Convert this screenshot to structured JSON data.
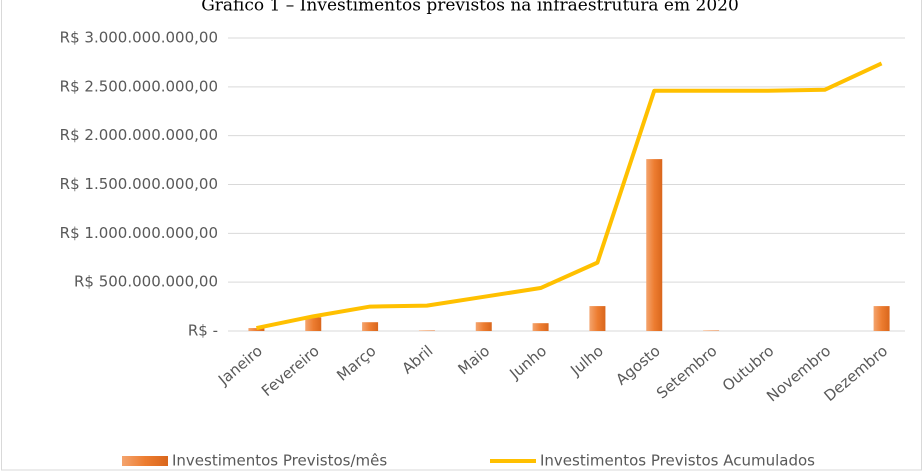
{
  "chart_data": {
    "type": "combo",
    "title": "Gráfico 1 – Investimentos previstos na infraestrutura em 2020",
    "categories": [
      "Janeiro",
      "Fevereiro",
      "Março",
      "Abril",
      "Maio",
      "Junho",
      "Julho",
      "Agosto",
      "Setembro",
      "Outubro",
      "Novembro",
      "Dezembro"
    ],
    "series": [
      {
        "name": "Investimentos Previstos/mês",
        "type": "bar",
        "color": "#ED7D31",
        "values": [
          30000000,
          140000000,
          90000000,
          5000000,
          90000000,
          80000000,
          255000000,
          1760000000,
          5000000,
          0,
          0,
          255000000
        ]
      },
      {
        "name": "Investimentos Previstos Acumulados",
        "type": "line",
        "color": "#FFC000",
        "values": [
          30000000,
          150000000,
          250000000,
          260000000,
          350000000,
          440000000,
          700000000,
          2460000000,
          2460000000,
          2460000000,
          2470000000,
          2740000000
        ]
      }
    ],
    "ylim": [
      0,
      3000000000
    ],
    "yticks": [
      {
        "value": 0,
        "label": "R$ -"
      },
      {
        "value": 500000000,
        "label": "R$ 500.000.000,00"
      },
      {
        "value": 1000000000,
        "label": "R$ 1.000.000.000,00"
      },
      {
        "value": 1500000000,
        "label": "R$ 1.500.000.000,00"
      },
      {
        "value": 2000000000,
        "label": "R$ 2.000.000.000,00"
      },
      {
        "value": 2500000000,
        "label": "R$ 2.500.000.000,00"
      },
      {
        "value": 3000000000,
        "label": "R$ 3.000.000.000,00"
      }
    ],
    "grid": true,
    "legend": "bottom"
  }
}
